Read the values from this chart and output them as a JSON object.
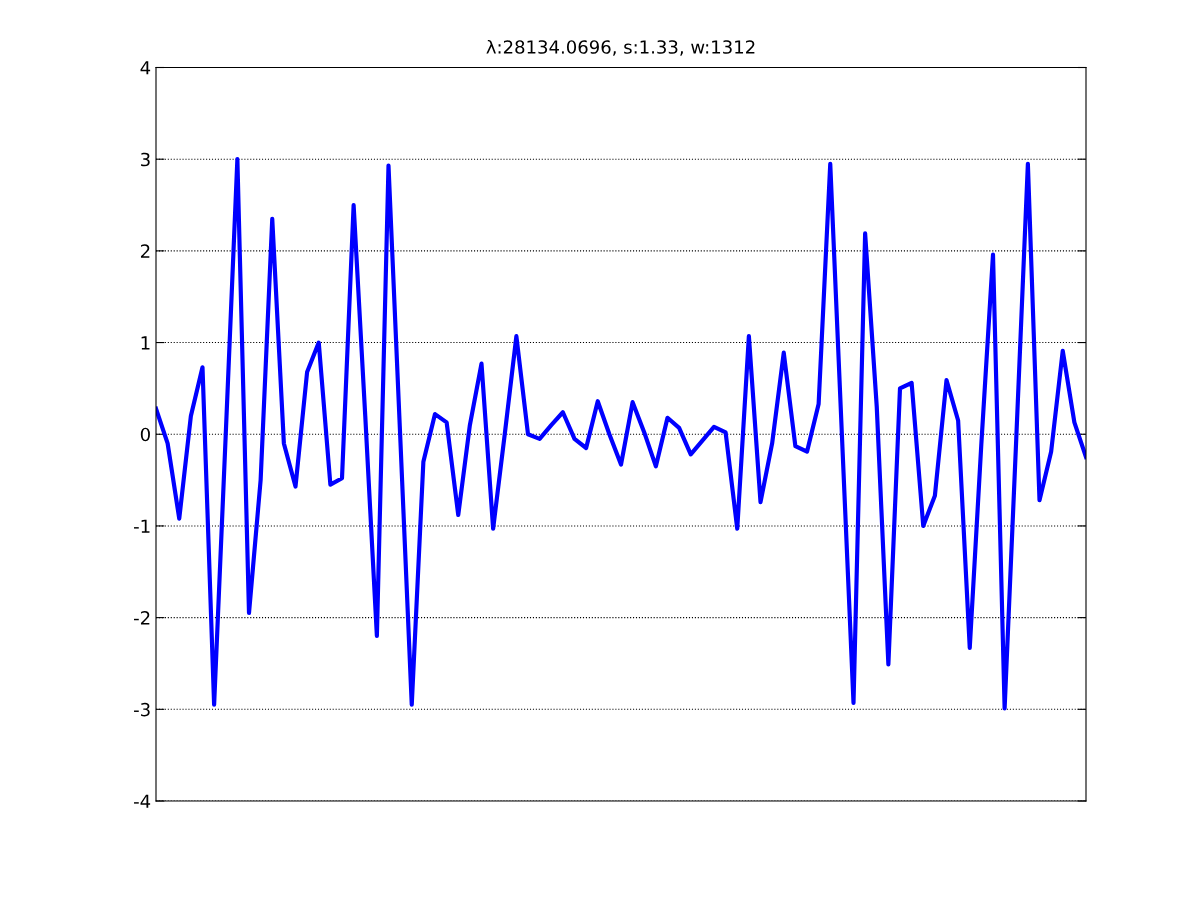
{
  "chart_data": {
    "type": "line",
    "title": "λ:28134.0696, s:1.33, w:1312",
    "categories": [
      null,
      null,
      null,
      null,
      null,
      null,
      null,
      null,
      null,
      null,
      null,
      null,
      null,
      null,
      null,
      null,
      null,
      null,
      null,
      null,
      null,
      null,
      null,
      null,
      null,
      null,
      null,
      null,
      null,
      null,
      null,
      null,
      null,
      null,
      null,
      null,
      null,
      null,
      null,
      null,
      null,
      null,
      null,
      null,
      null,
      null,
      null,
      null,
      null,
      null,
      null,
      null,
      null,
      null,
      null,
      null,
      null,
      null,
      null,
      null,
      null,
      null,
      null,
      null,
      null,
      null,
      null,
      null,
      null,
      null,
      null,
      null,
      null,
      null,
      null,
      null,
      null,
      null,
      null,
      null,
      null
    ],
    "series": [
      {
        "color": "#0000ff",
        "values": [
          0.28,
          -0.1,
          -0.92,
          0.2,
          0.73,
          -2.95,
          0.0,
          3.0,
          -1.95,
          -0.5,
          2.35,
          -0.1,
          -0.57,
          0.68,
          1.0,
          -0.55,
          -0.48,
          2.5,
          0.2,
          -2.2,
          2.93,
          0.0,
          -2.95,
          -0.3,
          0.22,
          0.13,
          -0.88,
          0.1,
          0.77,
          -1.03,
          0.0,
          1.07,
          0.0,
          -0.05,
          0.1,
          0.24,
          -0.05,
          -0.15,
          0.36,
          0.0,
          -0.33,
          0.35,
          0.02,
          -0.35,
          0.18,
          0.07,
          -0.22,
          -0.07,
          0.08,
          0.02,
          -1.03,
          1.07,
          -0.74,
          -0.1,
          0.89,
          -0.13,
          -0.19,
          0.33,
          2.95,
          0.0,
          -2.93,
          2.19,
          0.3,
          -2.51,
          0.5,
          0.56,
          -1.0,
          -0.67,
          0.59,
          0.15,
          -2.33,
          -0.1,
          1.96,
          -2.99,
          -0.05,
          2.95,
          -0.72,
          -0.19,
          0.91,
          0.13,
          -0.25
        ]
      }
    ],
    "ylim": [
      -4,
      4
    ],
    "yticks": [
      -4,
      -3,
      -2,
      -1,
      0,
      1,
      2,
      3,
      4
    ],
    "grid": "y",
    "line_style": "solid"
  }
}
